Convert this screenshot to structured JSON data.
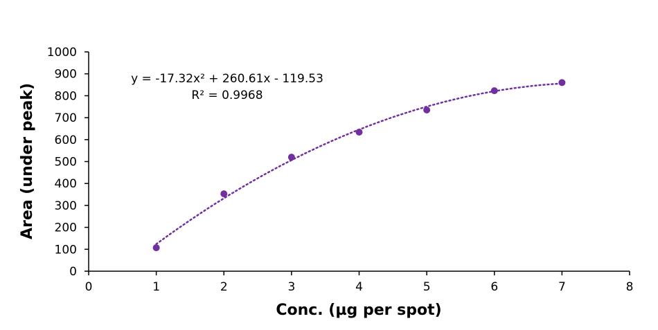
{
  "chart_data": {
    "type": "scatter",
    "xlabel": "Conc. (µg per spot)",
    "ylabel": "Area (under peak)",
    "xlim": [
      0,
      8
    ],
    "ylim": [
      0,
      1000
    ],
    "x_ticks": [
      0,
      1,
      2,
      3,
      4,
      5,
      6,
      7,
      8
    ],
    "y_ticks": [
      0,
      100,
      200,
      300,
      400,
      500,
      600,
      700,
      800,
      900,
      1000
    ],
    "grid": false,
    "series": [
      {
        "x": [
          1,
          2,
          3,
          4,
          5,
          6,
          7
        ],
        "y": [
          107,
          353,
          520,
          634,
          735,
          823,
          860
        ],
        "color": "#7030a0",
        "marker": "circle"
      }
    ],
    "trendline": {
      "type": "polynomial",
      "order": 2,
      "coefficients": [
        -17.32,
        260.61,
        -119.53
      ],
      "style": "dotted",
      "color": "#7030a0",
      "x_range": [
        1,
        7
      ]
    },
    "annotations": {
      "equation": "y = -17.32x² + 260.61x - 119.53",
      "r_squared": "R² = 0.9968"
    }
  }
}
